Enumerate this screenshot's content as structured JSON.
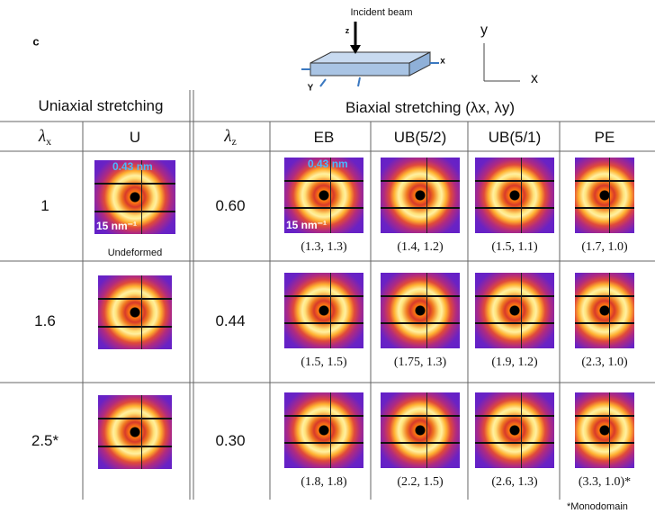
{
  "panel_label": "c",
  "schematic": {
    "beam_label": "Incident beam",
    "axis_x": "x",
    "axis_y": "Y",
    "axis_z": "z"
  },
  "axes_legend": {
    "y": "y",
    "x": "x"
  },
  "table": {
    "group_headers": [
      "Uniaxial stretching",
      "Biaxial stretching (λx, λy)"
    ],
    "columns": [
      {
        "symbol": "λ",
        "sub": "x"
      },
      {
        "text": "U"
      },
      {
        "symbol": "λ",
        "sub": "z"
      },
      {
        "text": "EB"
      },
      {
        "text": "UB(5/2)"
      },
      {
        "text": "UB(5/1)"
      },
      {
        "text": "PE"
      }
    ],
    "rows": [
      {
        "lambda_x": "1",
        "lambda_z": "0.60",
        "captions": [
          "(1.3, 1.3)",
          "(1.4, 1.2)",
          "(1.5, 1.1)",
          "(1.7, 1.0)"
        ]
      },
      {
        "lambda_x": "1.6",
        "lambda_z": "0.44",
        "captions": [
          "(1.5, 1.5)",
          "(1.75, 1.3)",
          "(1.9, 1.2)",
          "(2.3, 1.0)"
        ]
      },
      {
        "lambda_x": "2.5*",
        "lambda_z": "0.30",
        "captions": [
          "(1.8, 1.8)",
          "(2.2, 1.5)",
          "(2.6, 1.3)",
          "(3.3, 1.0)*"
        ]
      }
    ]
  },
  "annotations": {
    "d_spacing": "0.43 nm",
    "scale_bar": "15 nm⁻¹",
    "undeformed": "Undeformed"
  },
  "footnote": "*Monodomain"
}
